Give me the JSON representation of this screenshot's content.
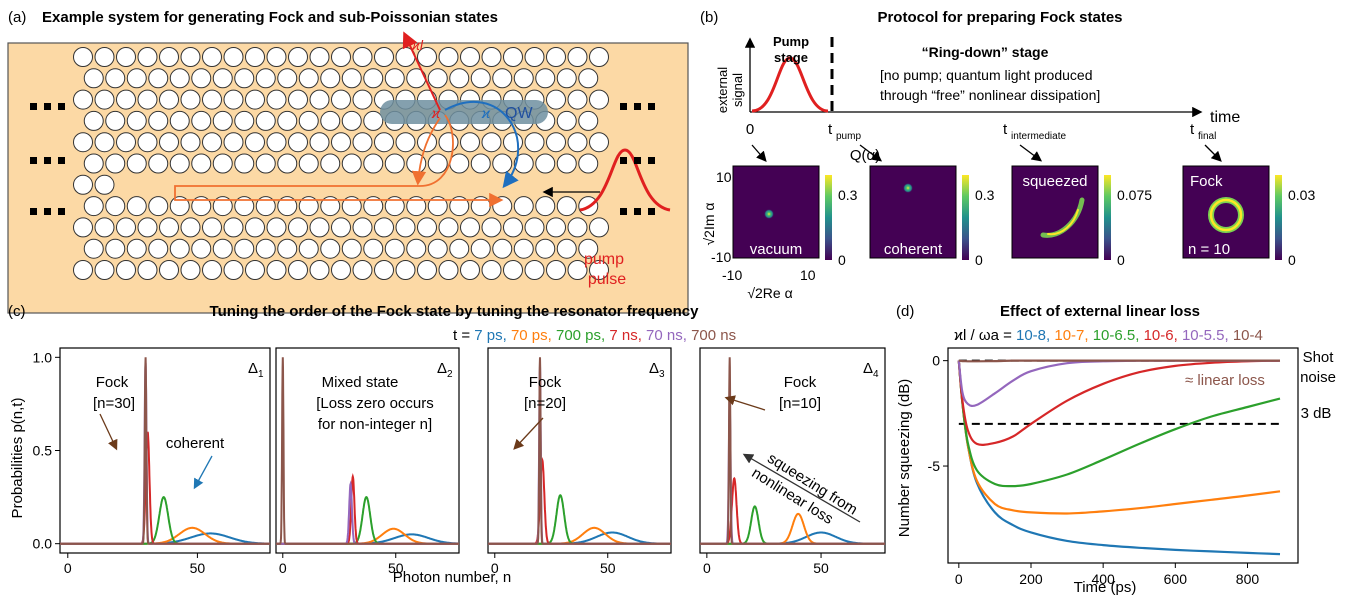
{
  "panel_a": {
    "label": "(a)",
    "title": "Example system for generating Fock and sub-Poissonian states",
    "kappa_l": "ϰl",
    "kappa": "ϰ",
    "qw": "QW",
    "pump": "pump",
    "pulse": "pulse",
    "colors": {
      "background": "#fcd9a5",
      "waveguide": "#6f8fa0",
      "red": "#e02020",
      "blue": "#1f6fbf",
      "orange": "#f07030"
    }
  },
  "panel_b": {
    "label": "(b)",
    "title": "Protocol for preparing Fock states",
    "ylabel_line1": "external",
    "ylabel_line2": "signal",
    "pump_stage_line1": "Pump",
    "pump_stage_line2": "stage",
    "ringdown_title": "“Ring-down” stage",
    "ringdown_desc_line1": "[no pump; quantum light produced",
    "ringdown_desc_line2": "through “free” nonlinear dissipation]",
    "time_label": "time",
    "t0": "0",
    "t_pump": "pump",
    "t_intermediate": "intermediate",
    "t_final": "final",
    "q_label": "Q(α)",
    "heatmap_ylabel": "√2Im α",
    "heatmap_xlabel": "√2Re α",
    "heatmap_yticks": [
      "10",
      "-10"
    ],
    "heatmap_xticks": [
      "-10",
      "10"
    ],
    "maps": [
      {
        "name": "vacuum",
        "cbar_max": "0.3",
        "cbar_min": "0"
      },
      {
        "name": "coherent",
        "cbar_max": "0.3",
        "cbar_min": "0"
      },
      {
        "name": "squeezed",
        "cbar_max": "0.075",
        "cbar_min": "0"
      },
      {
        "name": "Fock",
        "sub": "n = 10",
        "cbar_max": "0.03",
        "cbar_min": "0"
      }
    ]
  },
  "panel_c": {
    "label": "(c)",
    "title": "Tuning the order of the Fock state by tuning the resonator frequency",
    "legend_prefix": "t = ",
    "legend": [
      {
        "text": "7 ps",
        "color": "#1f77b4"
      },
      {
        "text": "70 ps",
        "color": "#ff7f0e"
      },
      {
        "text": "700 ps",
        "color": "#2ca02c"
      },
      {
        "text": "7 ns",
        "color": "#d62728"
      },
      {
        "text": "70 ns",
        "color": "#9467bd"
      },
      {
        "text": "700 ns",
        "color": "#8c564b"
      }
    ],
    "ylabel": "Probabilities p(n,t)",
    "xlabel": "Photon number, n",
    "yticks": [
      "0.0",
      "0.5",
      "1.0"
    ],
    "xticks": [
      "0",
      "50"
    ],
    "subplots": [
      {
        "delta": "Δ1",
        "annot1": "Fock",
        "annot2": "[n=30]",
        "annot3": "coherent"
      },
      {
        "delta": "Δ2",
        "annot1": "Mixed state",
        "annot2": "[Loss zero occurs",
        "annot3": "for non-integer n]"
      },
      {
        "delta": "Δ3",
        "annot1": "Fock",
        "annot2": "[n=20]"
      },
      {
        "delta": "Δ4",
        "annot1": "Fock",
        "annot2": "[n=10]",
        "annot3": "squeezing from",
        "annot4": "nonlinear loss"
      }
    ]
  },
  "panel_d": {
    "label": "(d)",
    "title": "Effect of external linear loss",
    "legend_prefix": "ϰl / ωa = ",
    "legend": [
      {
        "text": "10-8",
        "color": "#1f77b4"
      },
      {
        "text": "10-7",
        "color": "#ff7f0e"
      },
      {
        "text": "10-6.5",
        "color": "#2ca02c"
      },
      {
        "text": "10-6",
        "color": "#d62728"
      },
      {
        "text": "10-5.5",
        "color": "#9467bd"
      },
      {
        "text": "10-4",
        "color": "#8c564b"
      }
    ],
    "ylabel": "Number squeezing (dB)",
    "xlabel": "Time (ps)",
    "yticks": [
      "0",
      "-5"
    ],
    "xticks": [
      "0",
      "200",
      "400",
      "600",
      "800"
    ],
    "shot_noise_line1": "Shot",
    "shot_noise_line2": "noise",
    "three_db": "3 dB",
    "linear_loss": "≈ linear loss"
  },
  "chart_data": [
    {
      "type": "line",
      "title": "Tuning the order of the Fock state by tuning the resonator frequency",
      "xlabel": "Photon number, n",
      "ylabel": "Probabilities p(n,t)",
      "xlim": [
        -3,
        78
      ],
      "ylim": [
        0,
        1.0
      ],
      "subplots": [
        {
          "name": "Δ1",
          "series": [
            {
              "name": "7 ps",
              "shape": "gauss",
              "center": 55,
              "width": 7.5,
              "peak": 0.055
            },
            {
              "name": "70 ps",
              "shape": "gauss",
              "center": 48,
              "width": 5,
              "peak": 0.085
            },
            {
              "name": "700 ps",
              "shape": "gauss",
              "center": 37,
              "width": 1.7,
              "peak": 0.25
            },
            {
              "name": "7 ns",
              "shape": "gauss",
              "center": 30.8,
              "width": 0.7,
              "peak": 0.6
            },
            {
              "name": "70 ns",
              "shape": "gauss",
              "center": 30,
              "width": 0.35,
              "peak": 0.97
            },
            {
              "name": "700 ns",
              "shape": "gauss",
              "center": 30,
              "width": 0.3,
              "peak": 1.0
            }
          ]
        },
        {
          "name": "Δ2",
          "series": [
            {
              "name": "7 ps",
              "shape": "gauss",
              "center": 57,
              "width": 7.5,
              "peak": 0.05
            },
            {
              "name": "70 ps",
              "shape": "gauss",
              "center": 49,
              "width": 5,
              "peak": 0.08
            },
            {
              "name": "700 ps",
              "shape": "gauss",
              "center": 37,
              "width": 1.7,
              "peak": 0.25
            },
            {
              "name": "7 ns",
              "shape": "gauss",
              "center": 31,
              "width": 0.7,
              "peak": 0.36
            },
            {
              "name": "70 ns",
              "shape": "gauss",
              "center": 30,
              "width": 0.6,
              "peak": 0.32
            },
            {
              "name": "700 ns",
              "shape": "gauss",
              "center": 0,
              "width": 0.3,
              "peak": 1.0
            }
          ]
        },
        {
          "name": "Δ3",
          "series": [
            {
              "name": "7 ps",
              "shape": "gauss",
              "center": 52,
              "width": 7,
              "peak": 0.06
            },
            {
              "name": "70 ps",
              "shape": "gauss",
              "center": 44,
              "width": 5,
              "peak": 0.085
            },
            {
              "name": "700 ps",
              "shape": "gauss",
              "center": 29,
              "width": 1.7,
              "peak": 0.26
            },
            {
              "name": "7 ns",
              "shape": "gauss",
              "center": 21,
              "width": 0.9,
              "peak": 0.45
            },
            {
              "name": "70 ns",
              "shape": "gauss",
              "center": 20,
              "width": 0.35,
              "peak": 0.95
            },
            {
              "name": "700 ns",
              "shape": "gauss",
              "center": 20,
              "width": 0.3,
              "peak": 1.0
            }
          ]
        },
        {
          "name": "Δ4",
          "series": [
            {
              "name": "7 ps",
              "shape": "gauss",
              "center": 50,
              "width": 6.5,
              "peak": 0.06
            },
            {
              "name": "70 ps",
              "shape": "gauss",
              "center": 40,
              "width": 2.5,
              "peak": 0.16
            },
            {
              "name": "700 ps",
              "shape": "gauss",
              "center": 21,
              "width": 1.6,
              "peak": 0.2
            },
            {
              "name": "7 ns",
              "shape": "gauss",
              "center": 12,
              "width": 1.0,
              "peak": 0.35
            },
            {
              "name": "70 ns",
              "shape": "gauss",
              "center": 10,
              "width": 0.4,
              "peak": 0.75
            },
            {
              "name": "700 ns",
              "shape": "gauss",
              "center": 10,
              "width": 0.3,
              "peak": 1.0
            }
          ]
        }
      ]
    },
    {
      "type": "line",
      "title": "Effect of external linear loss",
      "xlabel": "Time (ps)",
      "ylabel": "Number squeezing (dB)",
      "xlim": [
        -30,
        940
      ],
      "ylim": [
        -9.6,
        0.6
      ],
      "x": [
        0,
        10,
        25,
        50,
        100,
        150,
        200,
        300,
        400,
        500,
        600,
        700,
        800,
        890
      ],
      "series": [
        {
          "name": "10-8",
          "values": [
            0,
            -2.0,
            -4.0,
            -5.8,
            -7.2,
            -7.8,
            -8.15,
            -8.55,
            -8.75,
            -8.88,
            -8.98,
            -9.05,
            -9.12,
            -9.18
          ]
        },
        {
          "name": "10-7",
          "values": [
            0,
            -2.0,
            -4.0,
            -5.7,
            -6.8,
            -7.1,
            -7.2,
            -7.25,
            -7.15,
            -7.0,
            -6.8,
            -6.6,
            -6.4,
            -6.2
          ]
        },
        {
          "name": "10-6.5",
          "values": [
            0,
            -2.0,
            -3.9,
            -5.2,
            -5.85,
            -5.95,
            -5.85,
            -5.4,
            -4.7,
            -3.95,
            -3.25,
            -2.65,
            -2.2,
            -1.8
          ]
        },
        {
          "name": "10-6",
          "values": [
            0,
            -1.9,
            -3.3,
            -3.95,
            -3.9,
            -3.6,
            -3.0,
            -1.9,
            -1.1,
            -0.55,
            -0.25,
            -0.1,
            -0.03,
            0
          ]
        },
        {
          "name": "10-5.5",
          "values": [
            0,
            -1.5,
            -2.05,
            -2.1,
            -1.55,
            -0.95,
            -0.5,
            -0.12,
            -0.03,
            0,
            0,
            0,
            0,
            0
          ]
        },
        {
          "name": "10-4",
          "values": [
            0,
            -0.02,
            -0.03,
            -0.03,
            -0.02,
            0,
            0,
            0,
            0,
            0,
            0,
            0,
            0,
            0
          ]
        }
      ],
      "reference_lines": [
        {
          "label": "Shot noise",
          "y": 0
        },
        {
          "label": "3 dB",
          "y": -3
        }
      ],
      "grid": false
    }
  ]
}
